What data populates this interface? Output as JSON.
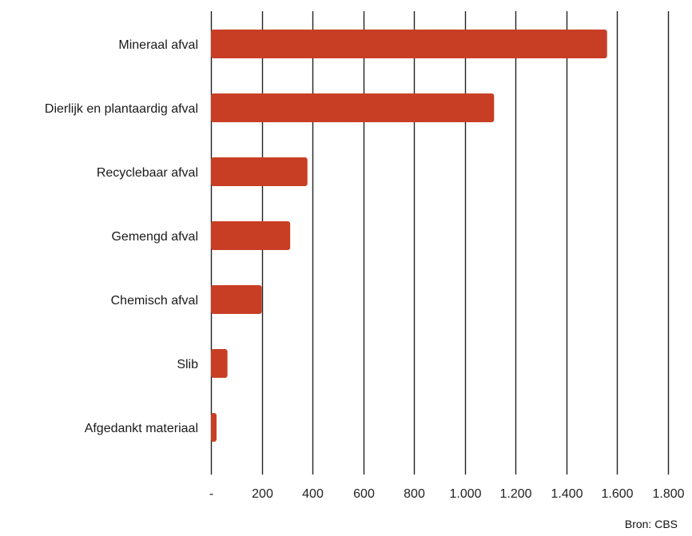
{
  "chart_data": {
    "type": "bar",
    "orientation": "horizontal",
    "categories": [
      "Mineraal afval",
      "Dierlijk en plantaardig afval",
      "Recyclebaar afval",
      "Gemengd afval",
      "Chemisch afval",
      "Slib",
      "Afgedankt materiaal"
    ],
    "values": [
      1560,
      1115,
      380,
      312,
      200,
      65,
      22
    ],
    "xlim": [
      0,
      1800
    ],
    "tick_values": [
      0,
      200,
      400,
      600,
      800,
      1000,
      1200,
      1400,
      1600,
      1800
    ],
    "tick_labels": [
      "-",
      "200",
      "400",
      "600",
      "800",
      "1.000",
      "1.200",
      "1.400",
      "1.600",
      "1.800"
    ],
    "title": "",
    "xlabel": "",
    "ylabel": "",
    "grid": "vertical",
    "legend": "none",
    "bar_color": "#c83e25",
    "grid_color": "#222222",
    "source": "Bron: CBS"
  }
}
